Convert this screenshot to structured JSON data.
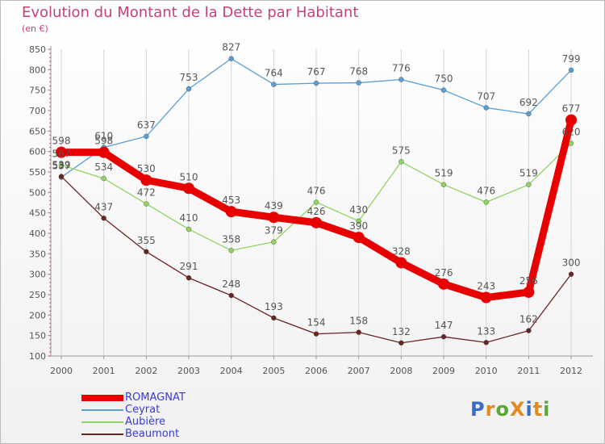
{
  "title": "Evolution du Montant de la Dette par Habitant",
  "subtitle": "(en €)",
  "logo": {
    "text": "ProXiti",
    "letter_colors": [
      "#3a6bc8",
      "#e08a20",
      "#58a836",
      "#e08a20",
      "#3a6bc8",
      "#e08a20",
      "#58a836"
    ]
  },
  "chart_data": {
    "type": "line",
    "x": [
      "2000",
      "2001",
      "2002",
      "2003",
      "2004",
      "2005",
      "2006",
      "2007",
      "2008",
      "2009",
      "2010",
      "2011",
      "2012"
    ],
    "ylim": [
      100,
      850
    ],
    "yticks": [
      "100",
      "150",
      "200",
      "250",
      "300",
      "350",
      "400",
      "450",
      "500",
      "550",
      "600",
      "650",
      "700",
      "750",
      "800",
      "850"
    ],
    "grid": "vertical",
    "legend_position": "bottom-left",
    "series": [
      {
        "name": "Ceyrat",
        "color": "#5a9fd4",
        "values": [
          537,
          610,
          637,
          753,
          827,
          764,
          767,
          768,
          776,
          750,
          707,
          692,
          799
        ]
      },
      {
        "name": "Aubière",
        "color": "#8fd461",
        "values": [
          567,
          534,
          472,
          410,
          358,
          379,
          476,
          430,
          575,
          519,
          476,
          519,
          620
        ]
      },
      {
        "name": "Beaumont",
        "color": "#6b2424",
        "values": [
          539,
          437,
          355,
          291,
          248,
          193,
          154,
          158,
          132,
          147,
          133,
          162,
          300
        ]
      },
      {
        "name": "ROMAGNAT",
        "color": "#e80000",
        "values": [
          598,
          598,
          530,
          510,
          453,
          439,
          426,
          390,
          328,
          276,
          243,
          256,
          677
        ]
      }
    ]
  }
}
